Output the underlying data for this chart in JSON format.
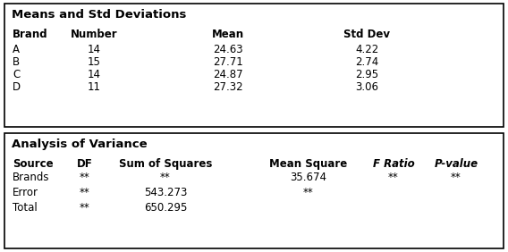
{
  "table1_title": "Means and Std Deviations",
  "table1_headers": [
    "Brand",
    "Number",
    "Mean",
    "Std Dev"
  ],
  "table1_rows": [
    [
      "A",
      "14",
      "24.63",
      "4.22"
    ],
    [
      "B",
      "15",
      "27.71",
      "2.74"
    ],
    [
      "C",
      "14",
      "24.87",
      "2.95"
    ],
    [
      "D",
      "11",
      "27.32",
      "3.06"
    ]
  ],
  "table2_title": "Analysis of Variance",
  "table2_headers": [
    "Source",
    "DF",
    "Sum of Squares",
    "Mean Square",
    "F Ratio",
    "P-value"
  ],
  "table2_rows": [
    [
      "Brands",
      "**",
      "**",
      "35.674",
      "**",
      "**"
    ],
    [
      "Error",
      "**",
      "543.273",
      "**",
      "",
      ""
    ],
    [
      "Total",
      "**",
      "650.295",
      "",
      "",
      ""
    ]
  ],
  "bg_color": "#ffffff",
  "border_color": "#000000",
  "text_color": "#000000",
  "title_fontsize": 9.5,
  "header_fontsize": 8.5,
  "data_fontsize": 8.5,
  "fig_width": 5.68,
  "fig_height": 2.82,
  "dpi": 100
}
